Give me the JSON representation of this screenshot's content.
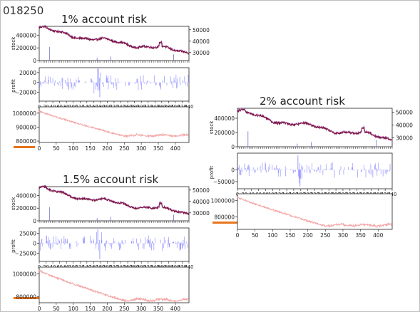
{
  "page": {
    "code": "018250"
  },
  "panels": [
    {
      "title": "1% account risk"
    },
    {
      "title": "2% account risk"
    },
    {
      "title": "1.5% account risk"
    }
  ],
  "chart_data": [
    {
      "type": "line",
      "panel": "1% account risk",
      "subplots": [
        {
          "kind": "dual-axis-line",
          "ylabel": "stock",
          "yticks_left": [
            0,
            200000,
            400000
          ],
          "yticks_right": [
            30000,
            40000,
            50000
          ],
          "ylim_left": [
            0,
            540000
          ],
          "ylim_right": [
            23000,
            53000
          ],
          "xlim": [
            0,
            440
          ],
          "series": [
            {
              "axis": "right",
              "color": "#7a0f3c",
              "start": 52000,
              "end": 30500
            },
            {
              "axis": "left",
              "color": "#7070c8",
              "shape": "spikes",
              "values": [
                0,
                0
              ]
            }
          ]
        },
        {
          "kind": "bar",
          "ylabel": "profit",
          "yticks": [
            -20000,
            0,
            20000
          ],
          "ylim": [
            -38000,
            30000
          ],
          "xticks": [
            0,
            20,
            40,
            60,
            80,
            100,
            120,
            140,
            160,
            180,
            200,
            220,
            240,
            260,
            280,
            300,
            320,
            340,
            360,
            380,
            400,
            420,
            440
          ],
          "xlim": [
            0,
            440
          ],
          "color": "#8080ff",
          "max_profit": 29000,
          "max_loss": -30000
        },
        {
          "kind": "line",
          "ylabel": "",
          "yticks": [
            800000,
            900000,
            1000000
          ],
          "ylim": [
            790000,
            1045000
          ],
          "xticks": [
            0,
            50,
            100,
            150,
            200,
            250,
            300,
            350,
            400
          ],
          "xlim": [
            0,
            440
          ],
          "color": "#f3a3a3",
          "start": 1015000,
          "end": 840000
        }
      ]
    },
    {
      "type": "line",
      "panel": "2% account risk",
      "subplots": [
        {
          "kind": "dual-axis-line",
          "ylabel": "stock",
          "yticks_left": [
            0,
            200000,
            400000
          ],
          "yticks_right": [
            30000,
            40000,
            50000
          ],
          "ylim_left": [
            0,
            540000
          ],
          "ylim_right": [
            23000,
            53000
          ],
          "xlim": [
            0,
            440
          ],
          "series": [
            {
              "axis": "right",
              "color": "#7a0f3c",
              "start": 51000,
              "end": 29500
            },
            {
              "axis": "left",
              "color": "#7070c8",
              "shape": "spikes",
              "values": [
                0,
                0
              ]
            }
          ]
        },
        {
          "kind": "bar",
          "ylabel": "profit",
          "yticks": [
            -50000,
            0
          ],
          "ylim": [
            -80000,
            70000
          ],
          "xticks": [
            0,
            20,
            40,
            60,
            80,
            100,
            120,
            140,
            160,
            180,
            200,
            220,
            240,
            260,
            280,
            300,
            320,
            340,
            360,
            380,
            400,
            420,
            440
          ],
          "xlim": [
            0,
            440
          ],
          "color": "#8080ff",
          "max_profit": 60000,
          "max_loss": -70000
        },
        {
          "kind": "line",
          "ylabel": "",
          "yticks": [
            800000,
            1000000
          ],
          "ylim": [
            650000,
            1080000
          ],
          "xticks": [
            0,
            50,
            100,
            150,
            200,
            250,
            300,
            350,
            400
          ],
          "xlim": [
            0,
            440
          ],
          "color": "#f3a3a3",
          "start": 1040000,
          "end": 700000
        }
      ]
    },
    {
      "type": "line",
      "panel": "1.5% account risk",
      "subplots": [
        {
          "kind": "dual-axis-line",
          "ylabel": "stock",
          "yticks_left": [
            0,
            200000,
            400000
          ],
          "yticks_right": [
            30000,
            40000,
            50000
          ],
          "ylim_left": [
            0,
            540000
          ],
          "ylim_right": [
            23000,
            53000
          ],
          "xlim": [
            0,
            440
          ],
          "series": [
            {
              "axis": "right",
              "color": "#7a0f3c",
              "start": 52000,
              "end": 30000
            },
            {
              "axis": "left",
              "color": "#7070c8",
              "shape": "spikes",
              "values": [
                0,
                0
              ]
            }
          ]
        },
        {
          "kind": "bar",
          "ylabel": "profit",
          "yticks": [
            -25000,
            0,
            25000
          ],
          "ylim": [
            -45000,
            38000
          ],
          "xticks": [
            0,
            20,
            40,
            60,
            80,
            100,
            120,
            140,
            160,
            180,
            200,
            220,
            240,
            260,
            280,
            300,
            320,
            340,
            360,
            380,
            400,
            420,
            440
          ],
          "xlim": [
            0,
            440
          ],
          "color": "#8080ff",
          "max_profit": 35000,
          "max_loss": -40000
        },
        {
          "kind": "line",
          "ylabel": "",
          "yticks": [
            800000,
            1000000
          ],
          "ylim": [
            745000,
            1060000
          ],
          "xticks": [
            0,
            50,
            100,
            150,
            200,
            250,
            300,
            350,
            400
          ],
          "xlim": [
            0,
            440
          ],
          "color": "#f3a3a3",
          "start": 1030000,
          "end": 770000
        }
      ]
    }
  ]
}
